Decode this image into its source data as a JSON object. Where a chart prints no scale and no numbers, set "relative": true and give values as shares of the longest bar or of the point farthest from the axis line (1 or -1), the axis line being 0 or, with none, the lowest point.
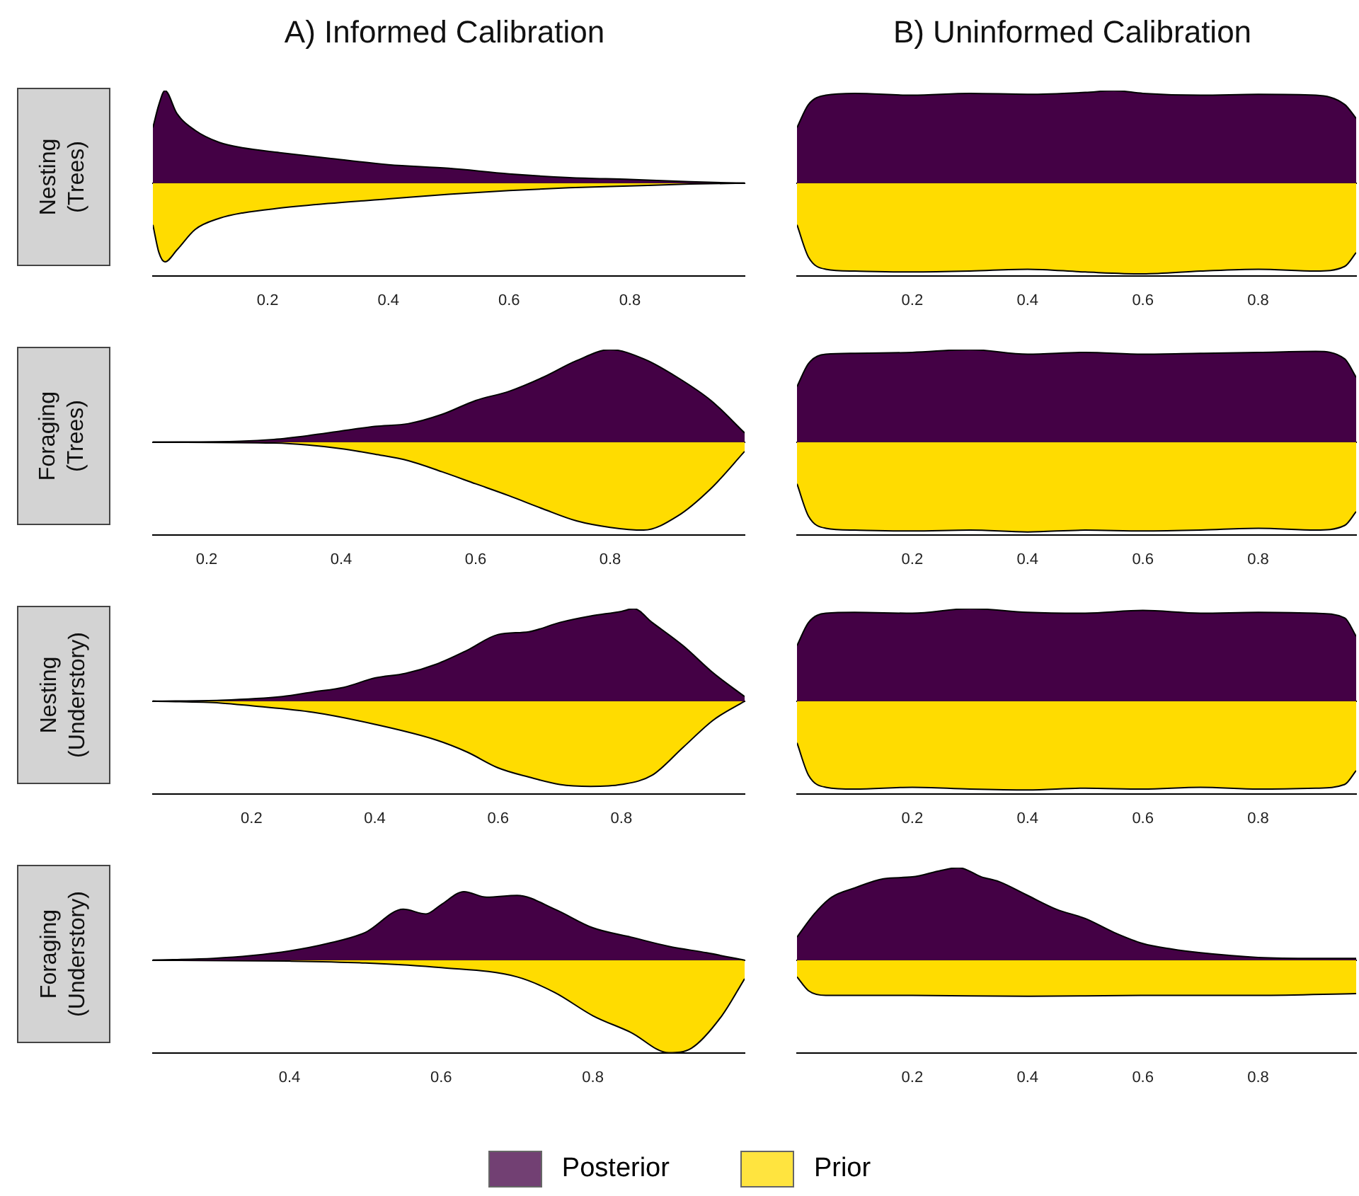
{
  "chart_data": [
    {
      "type": "area",
      "title": "A) Informed Calibration",
      "ylabel": "Nesting\n(Trees)",
      "relative": true,
      "xlim": [
        0.01,
        0.99
      ],
      "xticks": [
        0.2,
        0.4,
        0.6,
        0.8
      ],
      "series": [
        {
          "color": "#440145",
          "x": [
            0.01,
            0.02,
            0.03,
            0.05,
            0.08,
            0.12,
            0.16,
            0.22,
            0.3,
            0.4,
            0.5,
            0.6,
            0.7,
            0.8,
            0.9,
            0.99
          ],
          "values": [
            0.6,
            0.85,
            1.0,
            0.75,
            0.57,
            0.44,
            0.38,
            0.33,
            0.27,
            0.2,
            0.16,
            0.1,
            0.06,
            0.04,
            0.015,
            0
          ]
        },
        {
          "color": "#ffdc00",
          "x": [
            0.01,
            0.02,
            0.03,
            0.05,
            0.08,
            0.12,
            0.16,
            0.22,
            0.3,
            0.4,
            0.5,
            0.6,
            0.7,
            0.8,
            0.9,
            0.99
          ],
          "values": [
            -0.45,
            -0.75,
            -0.85,
            -0.72,
            -0.5,
            -0.38,
            -0.32,
            -0.27,
            -0.22,
            -0.17,
            -0.12,
            -0.08,
            -0.05,
            -0.03,
            -0.01,
            0
          ]
        }
      ]
    },
    {
      "type": "area",
      "title": "B) Uninformed Calibration",
      "relative": true,
      "xlim": [
        0,
        0.97
      ],
      "xticks": [
        0.2,
        0.4,
        0.6,
        0.8
      ],
      "series": [
        {
          "color": "#440145",
          "x": [
            0,
            0.02,
            0.05,
            0.1,
            0.2,
            0.3,
            0.4,
            0.5,
            0.55,
            0.6,
            0.7,
            0.8,
            0.9,
            0.95,
            0.97
          ],
          "values": [
            0.6,
            0.85,
            0.95,
            0.97,
            0.95,
            0.97,
            0.96,
            0.98,
            1.0,
            0.97,
            0.95,
            0.96,
            0.95,
            0.85,
            0.7
          ]
        },
        {
          "color": "#ffdc00",
          "x": [
            0,
            0.02,
            0.05,
            0.1,
            0.2,
            0.3,
            0.4,
            0.5,
            0.6,
            0.7,
            0.8,
            0.9,
            0.95,
            0.97
          ],
          "values": [
            -0.45,
            -0.8,
            -0.93,
            -0.95,
            -0.96,
            -0.95,
            -0.93,
            -0.96,
            -0.98,
            -0.95,
            -0.93,
            -0.95,
            -0.9,
            -0.75
          ]
        }
      ]
    },
    {
      "type": "area",
      "ylabel": "Foraging\n(Trees)",
      "relative": true,
      "xlim": [
        0.12,
        1.0
      ],
      "xticks": [
        0.2,
        0.4,
        0.6,
        0.8
      ],
      "series": [
        {
          "color": "#440145",
          "x": [
            0.12,
            0.25,
            0.3,
            0.35,
            0.4,
            0.45,
            0.5,
            0.55,
            0.6,
            0.65,
            0.7,
            0.75,
            0.8,
            0.85,
            0.9,
            0.95,
            1.0
          ],
          "values": [
            0,
            0.01,
            0.03,
            0.07,
            0.12,
            0.17,
            0.2,
            0.3,
            0.45,
            0.55,
            0.7,
            0.88,
            1.0,
            0.9,
            0.7,
            0.45,
            0.1
          ]
        },
        {
          "color": "#ffdc00",
          "x": [
            0.12,
            0.3,
            0.35,
            0.4,
            0.45,
            0.5,
            0.55,
            0.6,
            0.65,
            0.7,
            0.75,
            0.8,
            0.85,
            0.9,
            0.95,
            1.0
          ],
          "values": [
            0,
            -0.01,
            -0.03,
            -0.07,
            -0.13,
            -0.2,
            -0.32,
            -0.45,
            -0.58,
            -0.72,
            -0.85,
            -0.92,
            -0.95,
            -0.8,
            -0.5,
            -0.1
          ]
        }
      ]
    },
    {
      "type": "area",
      "relative": true,
      "xlim": [
        0,
        0.97
      ],
      "xticks": [
        0.2,
        0.4,
        0.6,
        0.8
      ],
      "series": [
        {
          "color": "#440145",
          "x": [
            0,
            0.02,
            0.05,
            0.1,
            0.2,
            0.3,
            0.4,
            0.5,
            0.6,
            0.7,
            0.8,
            0.9,
            0.95,
            0.97
          ],
          "values": [
            0.6,
            0.85,
            0.95,
            0.96,
            0.97,
            1.0,
            0.95,
            0.97,
            0.95,
            0.96,
            0.97,
            0.98,
            0.9,
            0.7
          ]
        },
        {
          "color": "#ffdc00",
          "x": [
            0,
            0.02,
            0.05,
            0.1,
            0.2,
            0.3,
            0.4,
            0.5,
            0.6,
            0.7,
            0.8,
            0.9,
            0.95,
            0.97
          ],
          "values": [
            -0.45,
            -0.8,
            -0.93,
            -0.95,
            -0.96,
            -0.95,
            -0.97,
            -0.95,
            -0.96,
            -0.95,
            -0.93,
            -0.95,
            -0.9,
            -0.75
          ]
        }
      ]
    },
    {
      "type": "area",
      "ylabel": "Nesting\n(Understory)",
      "relative": true,
      "xlim": [
        0.04,
        1.0
      ],
      "xticks": [
        0.2,
        0.4,
        0.6,
        0.8
      ],
      "series": [
        {
          "color": "#440145",
          "x": [
            0.04,
            0.15,
            0.25,
            0.3,
            0.35,
            0.4,
            0.45,
            0.5,
            0.55,
            0.6,
            0.65,
            0.7,
            0.75,
            0.8,
            0.82,
            0.85,
            0.9,
            0.95,
            1.0
          ],
          "values": [
            0,
            0.01,
            0.05,
            0.1,
            0.15,
            0.25,
            0.3,
            0.4,
            0.55,
            0.72,
            0.75,
            0.85,
            0.92,
            0.97,
            1.0,
            0.85,
            0.6,
            0.3,
            0.05
          ]
        },
        {
          "color": "#ffdc00",
          "x": [
            0.04,
            0.15,
            0.2,
            0.3,
            0.4,
            0.5,
            0.55,
            0.6,
            0.65,
            0.7,
            0.75,
            0.8,
            0.85,
            0.9,
            0.95,
            1.0
          ],
          "values": [
            0,
            -0.02,
            -0.05,
            -0.12,
            -0.25,
            -0.42,
            -0.55,
            -0.72,
            -0.82,
            -0.9,
            -0.92,
            -0.9,
            -0.8,
            -0.5,
            -0.2,
            0
          ]
        }
      ]
    },
    {
      "type": "area",
      "relative": true,
      "xlim": [
        0,
        0.97
      ],
      "xticks": [
        0.2,
        0.4,
        0.6,
        0.8
      ],
      "series": [
        {
          "color": "#440145",
          "x": [
            0,
            0.02,
            0.05,
            0.1,
            0.2,
            0.3,
            0.4,
            0.5,
            0.6,
            0.7,
            0.8,
            0.9,
            0.95,
            0.97
          ],
          "values": [
            0.6,
            0.85,
            0.95,
            0.96,
            0.95,
            1.0,
            0.96,
            0.95,
            0.98,
            0.95,
            0.96,
            0.95,
            0.9,
            0.7
          ]
        },
        {
          "color": "#ffdc00",
          "x": [
            0,
            0.02,
            0.05,
            0.1,
            0.2,
            0.3,
            0.4,
            0.5,
            0.6,
            0.7,
            0.8,
            0.9,
            0.95,
            0.97
          ],
          "values": [
            -0.45,
            -0.8,
            -0.93,
            -0.95,
            -0.93,
            -0.95,
            -0.96,
            -0.94,
            -0.95,
            -0.93,
            -0.95,
            -0.94,
            -0.9,
            -0.75
          ]
        }
      ]
    },
    {
      "type": "area",
      "ylabel": "Foraging\n(Understory)",
      "relative": true,
      "xlim": [
        0.22,
        1.0
      ],
      "xticks": [
        0.4,
        0.6,
        0.8
      ],
      "series": [
        {
          "color": "#440145",
          "x": [
            0.22,
            0.3,
            0.35,
            0.4,
            0.45,
            0.5,
            0.55,
            0.58,
            0.6,
            0.63,
            0.66,
            0.7,
            0.75,
            0.8,
            0.85,
            0.9,
            0.95,
            1.0
          ],
          "values": [
            0,
            0.02,
            0.05,
            0.1,
            0.18,
            0.3,
            0.55,
            0.5,
            0.6,
            0.74,
            0.68,
            0.7,
            0.55,
            0.35,
            0.25,
            0.15,
            0.08,
            0
          ]
        },
        {
          "color": "#ffdc00",
          "x": [
            0.22,
            0.4,
            0.5,
            0.6,
            0.7,
            0.75,
            0.8,
            0.85,
            0.9,
            0.93,
            0.97,
            1.0
          ],
          "values": [
            0,
            -0.01,
            -0.03,
            -0.08,
            -0.18,
            -0.35,
            -0.6,
            -0.78,
            -1.0,
            -0.95,
            -0.6,
            -0.2
          ]
        }
      ]
    },
    {
      "type": "area",
      "relative": true,
      "legend": "bottom",
      "xlim": [
        0,
        0.97
      ],
      "xticks": [
        0.2,
        0.4,
        0.6,
        0.8
      ],
      "series": [
        {
          "name": "Posterior",
          "color": "#440145",
          "x": [
            0,
            0.03,
            0.06,
            0.1,
            0.15,
            0.2,
            0.25,
            0.28,
            0.32,
            0.35,
            0.4,
            0.45,
            0.5,
            0.55,
            0.6,
            0.65,
            0.7,
            0.8,
            0.9,
            0.97
          ],
          "values": [
            0.25,
            0.5,
            0.68,
            0.78,
            0.88,
            0.9,
            0.97,
            1.0,
            0.9,
            0.85,
            0.7,
            0.55,
            0.45,
            0.3,
            0.18,
            0.12,
            0.08,
            0.03,
            0.02,
            0.02
          ]
        },
        {
          "name": "Prior",
          "color": "#ffdc00",
          "x": [
            0,
            0.02,
            0.05,
            0.2,
            0.4,
            0.6,
            0.8,
            0.97
          ],
          "values": [
            -0.18,
            -0.33,
            -0.38,
            -0.38,
            -0.39,
            -0.38,
            -0.38,
            -0.36
          ]
        }
      ]
    }
  ]
}
